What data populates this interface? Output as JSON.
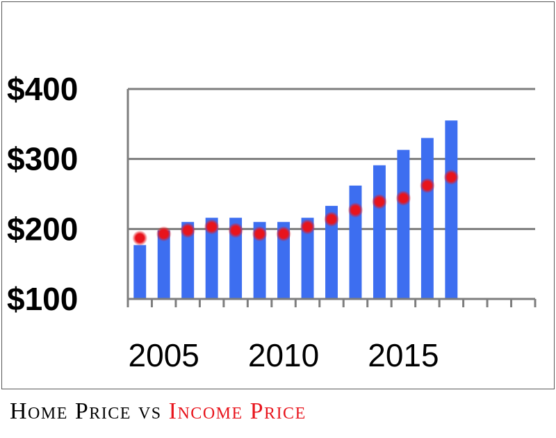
{
  "chart_data": {
    "type": "bar",
    "title": "",
    "xlabel": "",
    "ylabel": "",
    "ylim": [
      100,
      400
    ],
    "yticks": [
      100,
      200,
      300,
      400
    ],
    "ytick_labels": [
      "$100",
      "$200",
      "$300",
      "$400"
    ],
    "x": [
      2004,
      2005,
      2006,
      2007,
      2008,
      2009,
      2010,
      2011,
      2012,
      2013,
      2014,
      2015,
      2016,
      2017,
      2018,
      2019,
      2020
    ],
    "xtick_labels": [
      {
        "x": 2005,
        "label": "2005"
      },
      {
        "x": 2010,
        "label": "2010"
      },
      {
        "x": 2015,
        "label": "2015"
      }
    ],
    "grid": "horizontal",
    "legend": "none",
    "series": [
      {
        "kind": "bar",
        "color": "#3d6ef0",
        "values": [
          177,
          198,
          210,
          216,
          216,
          210,
          210,
          216,
          233,
          262,
          291,
          313,
          330,
          355,
          null,
          null,
          null
        ]
      },
      {
        "kind": "scatter",
        "color": "#e8141c",
        "values": [
          187,
          193,
          198,
          203,
          198,
          193,
          193,
          203,
          214,
          227,
          239,
          244,
          262,
          274,
          null,
          null,
          null
        ]
      }
    ]
  },
  "caption": {
    "home_text": "Home Price",
    "vs_text": "vs",
    "income_text": "Income Price",
    "home_color": "#000000",
    "income_color": "#e8141c"
  }
}
